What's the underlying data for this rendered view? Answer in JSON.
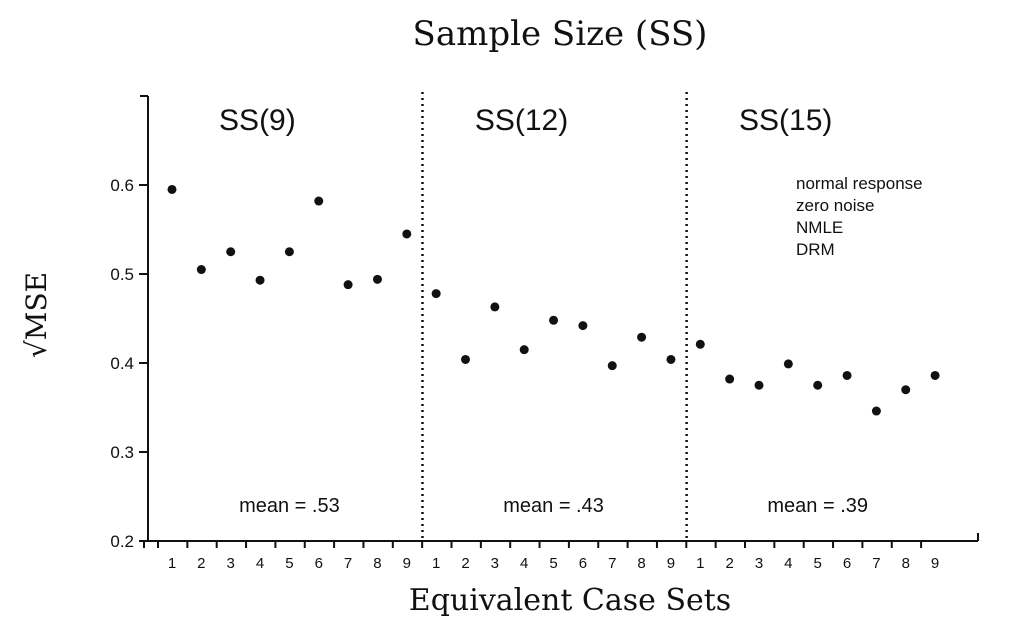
{
  "chart_data": {
    "type": "scatter",
    "title": "Sample Size (SS)",
    "xlabel": "Equivalent Case Sets",
    "ylabel": "√MSE",
    "ylim": [
      0.2,
      0.7
    ],
    "yticks": [
      0.2,
      0.3,
      0.4,
      0.5,
      0.6
    ],
    "ytick_labels": [
      "0.2",
      "0.3",
      "0.4",
      "0.5",
      "0.6"
    ],
    "grid": false,
    "legend": false,
    "panels": [
      {
        "label": "SS(9)",
        "mean_label": "mean = .53",
        "x": [
          "1",
          "2",
          "3",
          "4",
          "5",
          "6",
          "7",
          "8",
          "9"
        ],
        "values": [
          0.595,
          0.505,
          0.525,
          0.493,
          0.525,
          0.582,
          0.488,
          0.494,
          0.545
        ]
      },
      {
        "label": "SS(12)",
        "mean_label": "mean = .43",
        "x": [
          "1",
          "2",
          "3",
          "4",
          "5",
          "6",
          "7",
          "8",
          "9"
        ],
        "values": [
          0.478,
          0.404,
          0.463,
          0.415,
          0.448,
          0.442,
          0.397,
          0.429,
          0.404
        ]
      },
      {
        "label": "SS(15)",
        "mean_label": "mean = .39",
        "x": [
          "1",
          "2",
          "3",
          "4",
          "5",
          "6",
          "7",
          "8",
          "9"
        ],
        "values": [
          0.421,
          0.382,
          0.375,
          0.399,
          0.375,
          0.386,
          0.346,
          0.37,
          0.386
        ]
      }
    ],
    "annotation": [
      "normal response",
      "zero noise",
      "NMLE",
      "DRM"
    ]
  }
}
